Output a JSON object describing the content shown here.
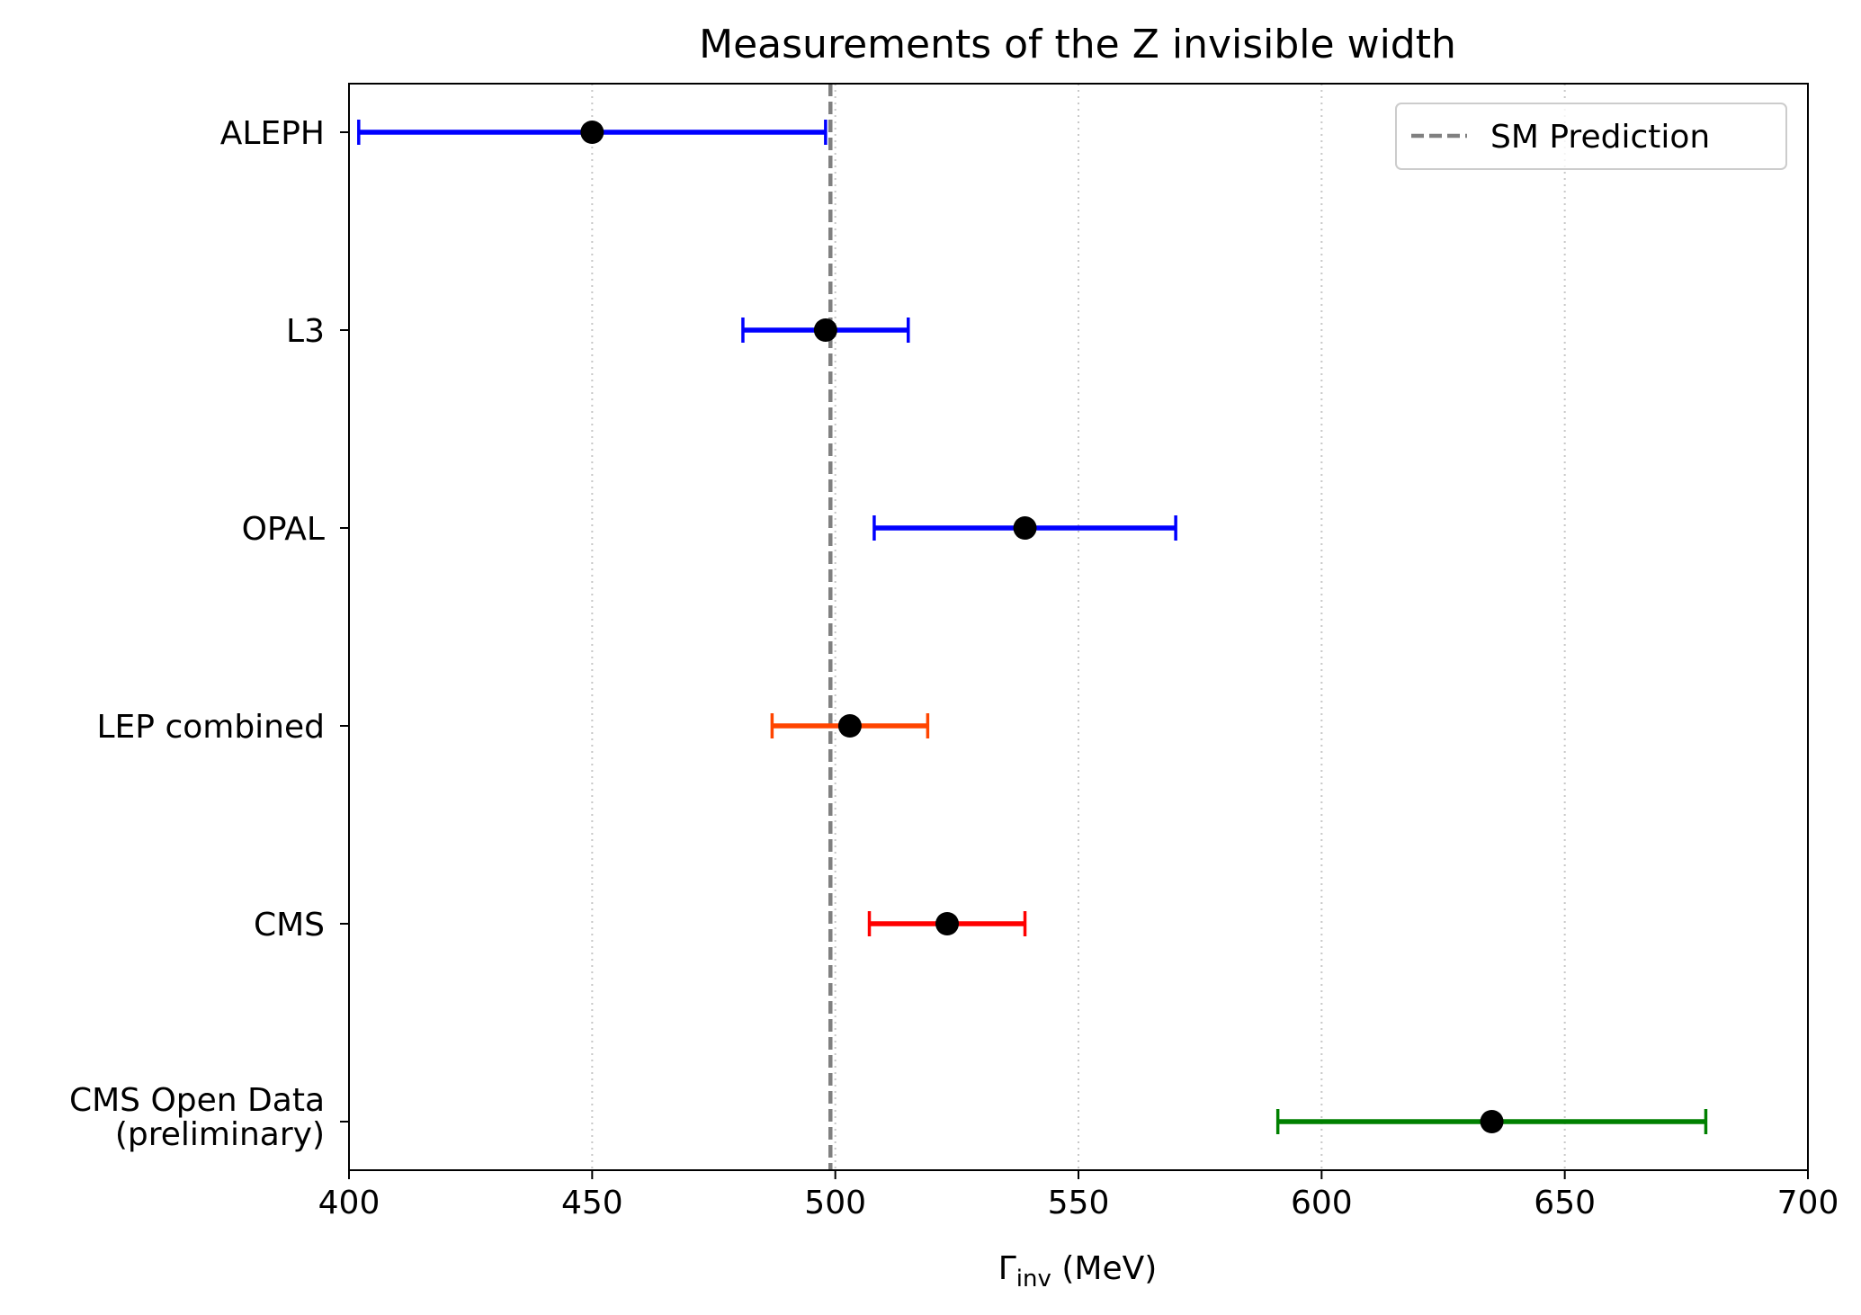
{
  "chart_data": {
    "type": "scatter",
    "title": "Measurements of the Z invisible width",
    "xlabel_main": "Γ",
    "xlabel_sub": "inv",
    "xlabel_unit": " (MeV)",
    "xlim": [
      400,
      700
    ],
    "xticks": [
      400,
      450,
      500,
      550,
      600,
      650,
      700
    ],
    "grid": "vertical dotted",
    "reference_line": {
      "label": "SM Prediction",
      "value": 499.0,
      "color": "#808080",
      "style": "dashed"
    },
    "legend": {
      "placement": "top-right",
      "entries": [
        "SM Prediction"
      ]
    },
    "measurements": [
      {
        "label_lines": [
          "ALEPH"
        ],
        "value": 450,
        "err_low": 48,
        "err_high": 48,
        "color": "#0000ff"
      },
      {
        "label_lines": [
          "L3"
        ],
        "value": 498,
        "err_low": 17,
        "err_high": 17,
        "color": "#0000ff"
      },
      {
        "label_lines": [
          "OPAL"
        ],
        "value": 539,
        "err_low": 31,
        "err_high": 31,
        "color": "#0000ff"
      },
      {
        "label_lines": [
          "LEP combined"
        ],
        "value": 503,
        "err_low": 16,
        "err_high": 16,
        "color": "#ff4500"
      },
      {
        "label_lines": [
          "CMS"
        ],
        "value": 523,
        "err_low": 16,
        "err_high": 16,
        "color": "#ff0000"
      },
      {
        "label_lines": [
          "CMS Open Data",
          "(preliminary)"
        ],
        "value": 635,
        "err_low": 44,
        "err_high": 44,
        "color": "#008000"
      }
    ],
    "marker_color": "#000000"
  }
}
